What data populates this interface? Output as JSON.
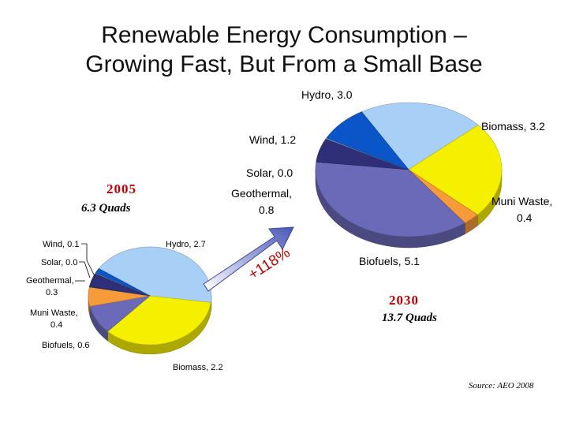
{
  "title": {
    "line1": "Renewable Energy Consumption –",
    "line2": "Growing Fast, But From a Small Base"
  },
  "colors": {
    "hydro": "#a8cff5",
    "biomass": "#f5f000",
    "muni_waste": "#f79a3a",
    "biofuels": "#6a6ab8",
    "geothermal": "#2f2f78",
    "solar": "#9ab8d8",
    "wind": "#0a55c8",
    "arrow": "#6a78c8",
    "accent": "#c00000"
  },
  "growth_label": "+118%",
  "source": "Source:  AEO 2008",
  "chart_data": [
    {
      "type": "pie",
      "year": "2005",
      "total": "6.3 Quads",
      "slices": [
        {
          "key": "hydro",
          "name": "Hydro",
          "value": 2.7,
          "label": "Hydro, 2.7"
        },
        {
          "key": "biomass",
          "name": "Biomass",
          "value": 2.2,
          "label": "Biomass, 2.2"
        },
        {
          "key": "biofuels",
          "name": "Biofuels",
          "value": 0.6,
          "label": "Biofuels, 0.6"
        },
        {
          "key": "muni_waste",
          "name": "Muni Waste",
          "value": 0.4,
          "label_line1": "Muni Waste,",
          "label_line2": "0.4"
        },
        {
          "key": "geothermal",
          "name": "Geothermal",
          "value": 0.3,
          "label_line1": "Geothermal,",
          "label_line2": "0.3"
        },
        {
          "key": "solar",
          "name": "Solar",
          "value": 0.0,
          "label": "Solar, 0.0"
        },
        {
          "key": "wind",
          "name": "Wind",
          "value": 0.1,
          "label": "Wind, 0.1"
        }
      ]
    },
    {
      "type": "pie",
      "year": "2030",
      "total": "13.7 Quads",
      "slices": [
        {
          "key": "hydro",
          "name": "Hydro",
          "value": 3.0,
          "label": "Hydro, 3.0"
        },
        {
          "key": "biomass",
          "name": "Biomass",
          "value": 3.2,
          "label": "Biomass, 3.2"
        },
        {
          "key": "muni_waste",
          "name": "Muni Waste",
          "value": 0.4,
          "label_line1": "Muni Waste,",
          "label_line2": "0.4"
        },
        {
          "key": "biofuels",
          "name": "Biofuels",
          "value": 5.1,
          "label": "Biofuels, 5.1"
        },
        {
          "key": "geothermal",
          "name": "Geothermal",
          "value": 0.8,
          "label_line1": "Geothermal,",
          "label_line2": "0.8"
        },
        {
          "key": "solar",
          "name": "Solar",
          "value": 0.0,
          "label": "Solar, 0.0"
        },
        {
          "key": "wind",
          "name": "Wind",
          "value": 1.2,
          "label": "Wind, 1.2"
        }
      ]
    }
  ]
}
